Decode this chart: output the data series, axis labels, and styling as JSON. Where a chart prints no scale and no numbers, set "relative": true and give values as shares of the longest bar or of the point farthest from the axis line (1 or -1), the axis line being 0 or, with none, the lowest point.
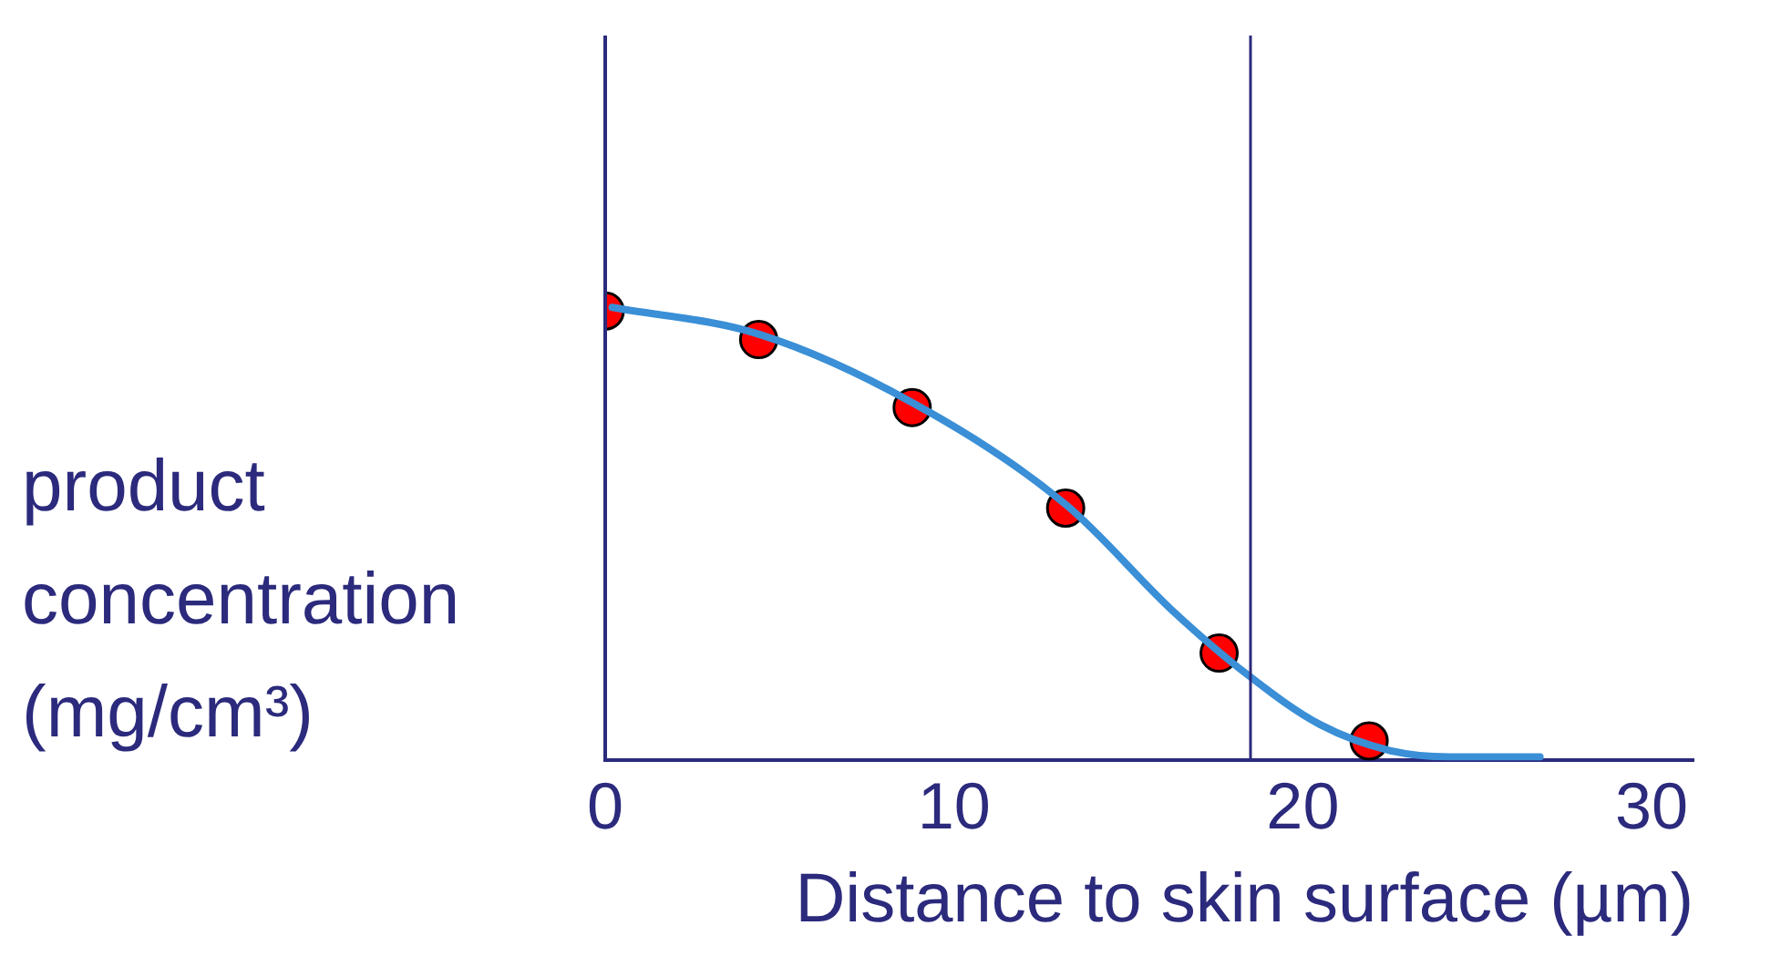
{
  "chart_data": {
    "type": "scatter",
    "xlabel": "Distance to skin surface (µm)",
    "ylabel": "product concentration (mg/cm³)",
    "relative": true,
    "xlim": [
      0,
      31.2
    ],
    "xticks": [
      0,
      10,
      20,
      30
    ],
    "tick_labels": "x",
    "grid": false,
    "legend": false,
    "series": [
      {
        "type": "line",
        "color": "#3a8fd6",
        "marker": "none",
        "line_style": "solid",
        "x": [
          0.2,
          4.4,
          8.8,
          13.2,
          16.3,
          18.4,
          20.5,
          22.6,
          24.2,
          26.8
        ],
        "values": [
          1.0,
          0.941,
          0.79,
          0.565,
          0.328,
          0.19,
          0.079,
          0.02,
          0.008,
          0.008
        ]
      },
      {
        "type": "scatter",
        "color": "#ff0000",
        "marker": "circle",
        "x": [
          0,
          4.4,
          8.8,
          13.2,
          17.6,
          21.9
        ],
        "values": [
          0.992,
          0.929,
          0.779,
          0.557,
          0.237,
          0.043
        ]
      }
    ],
    "ref_lines": [
      {
        "axis": "x",
        "value": 18.5,
        "color": "#2b2a7c"
      }
    ]
  }
}
